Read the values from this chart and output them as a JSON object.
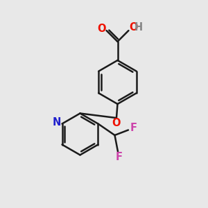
{
  "background_color": "#e8e8e8",
  "bond_color": "#1a1a1a",
  "oxygen_color": "#ee1100",
  "nitrogen_color": "#2020cc",
  "fluorine_color": "#cc44aa",
  "hydrogen_color": "#888888",
  "line_width": 1.8,
  "figsize": [
    3.0,
    3.0
  ],
  "dpi": 100,
  "xlim": [
    0,
    10
  ],
  "ylim": [
    0,
    10
  ]
}
